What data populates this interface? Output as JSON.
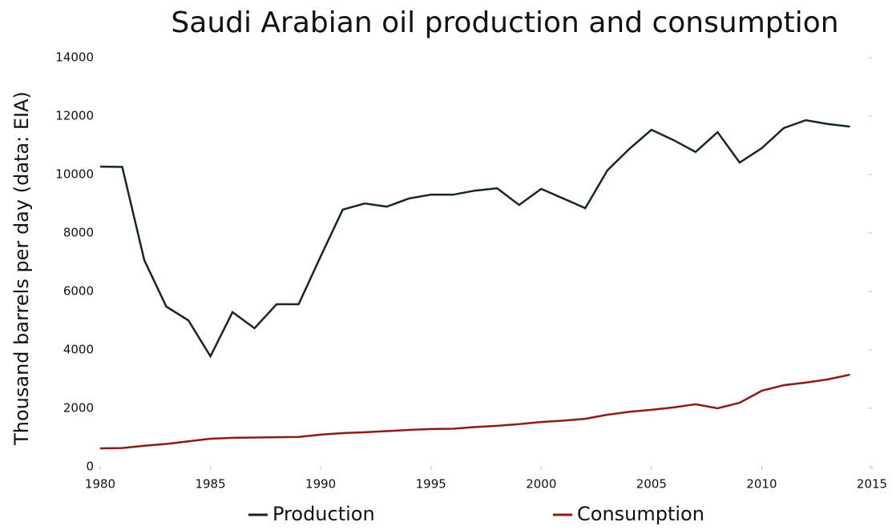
{
  "chart_data": {
    "type": "line",
    "title": "Saudi Arabian oil production and consumption",
    "y_label": "Thousand barrels per day (data: EIA)",
    "x": [
      1980,
      1981,
      1982,
      1983,
      1984,
      1985,
      1986,
      1987,
      1988,
      1989,
      1990,
      1991,
      1992,
      1993,
      1994,
      1995,
      1996,
      1997,
      1998,
      1999,
      2000,
      2001,
      2002,
      2003,
      2004,
      2005,
      2006,
      2007,
      2008,
      2009,
      2010,
      2011,
      2012,
      2013,
      2014
    ],
    "series": [
      {
        "name": "Production",
        "color": "#14262c",
        "values": [
          10270,
          10260,
          7070,
          5480,
          5010,
          3780,
          5290,
          4740,
          5560,
          5560,
          7200,
          8800,
          9010,
          8900,
          9180,
          9310,
          9310,
          9450,
          9530,
          8960,
          9510,
          9180,
          8850,
          10140,
          10880,
          11530,
          11180,
          10770,
          11450,
          10410,
          10900,
          11590,
          11860,
          11730,
          11640
        ]
      },
      {
        "name": "Consumption",
        "color": "#8b1c14",
        "values": [
          630,
          640,
          720,
          780,
          870,
          960,
          990,
          1000,
          1010,
          1020,
          1100,
          1150,
          1180,
          1220,
          1260,
          1290,
          1300,
          1360,
          1400,
          1460,
          1530,
          1580,
          1640,
          1780,
          1880,
          1950,
          2030,
          2140,
          2000,
          2190,
          2600,
          2790,
          2880,
          2990,
          3150
        ]
      }
    ],
    "xlim": [
      1980,
      2015
    ],
    "xticks": [
      1980,
      1985,
      1990,
      1995,
      2000,
      2005,
      2010,
      2015
    ],
    "ylim": [
      0,
      14000
    ],
    "yticks": [
      0,
      2000,
      4000,
      6000,
      8000,
      10000,
      12000,
      14000
    ],
    "legend": "bottom"
  }
}
